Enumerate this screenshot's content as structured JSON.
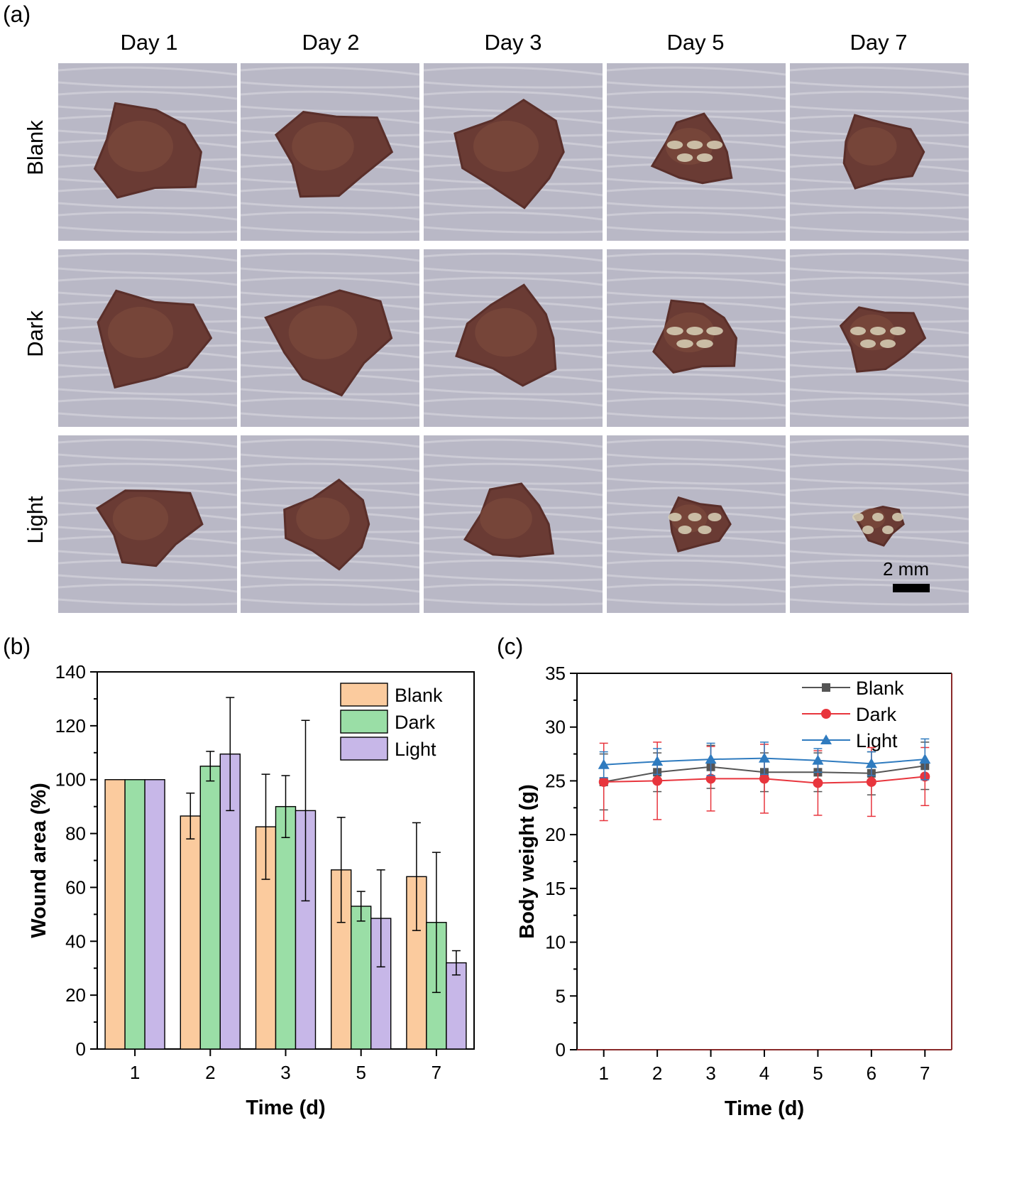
{
  "panel_a": {
    "label": "(a)",
    "days": [
      "Day 1",
      "Day 2",
      "Day 3",
      "Day 5",
      "Day 7"
    ],
    "groups": [
      "Blank",
      "Dark",
      "Light"
    ],
    "scale_bar": "2 mm"
  },
  "chart_data": [
    {
      "panel": "(b)",
      "type": "bar",
      "xlabel": "Time (d)",
      "ylabel": "Wound area (%)",
      "ylim": [
        0,
        140
      ],
      "yticks": [
        0,
        20,
        40,
        60,
        80,
        100,
        120,
        140
      ],
      "categories": [
        "1",
        "2",
        "3",
        "5",
        "7"
      ],
      "legend_position": "top-right",
      "series": [
        {
          "name": "Blank",
          "color": "#FBCB9E",
          "values": [
            100,
            86.5,
            82.5,
            66.5,
            64
          ],
          "errors": [
            0,
            8.5,
            19.5,
            19.5,
            20
          ]
        },
        {
          "name": "Dark",
          "color": "#9ADEA6",
          "values": [
            100,
            105,
            90,
            53,
            47
          ],
          "errors": [
            0,
            5.5,
            11.5,
            5.5,
            26
          ]
        },
        {
          "name": "Light",
          "color": "#C7B7E8",
          "values": [
            100,
            109.5,
            88.5,
            48.5,
            32
          ],
          "errors": [
            0,
            21,
            33.5,
            18,
            4.5
          ]
        }
      ]
    },
    {
      "panel": "(c)",
      "type": "line",
      "xlabel": "Time (d)",
      "ylabel": "Body weight (g)",
      "ylim": [
        0,
        35
      ],
      "yticks": [
        0,
        5,
        10,
        15,
        20,
        25,
        30,
        35
      ],
      "xlim": [
        0.5,
        7.5
      ],
      "x": [
        1,
        2,
        3,
        4,
        5,
        6,
        7
      ],
      "legend_position": "top-right",
      "series": [
        {
          "name": "Blank",
          "color": "#555555",
          "marker": "square",
          "values": [
            24.9,
            25.8,
            26.3,
            25.8,
            25.8,
            25.7,
            26.4
          ],
          "errors": [
            2.6,
            1.8,
            2.0,
            1.8,
            1.8,
            2.0,
            2.2
          ]
        },
        {
          "name": "Dark",
          "color": "#E8353D",
          "marker": "circle",
          "values": [
            24.9,
            25.0,
            25.2,
            25.2,
            24.8,
            24.9,
            25.4
          ],
          "errors": [
            3.6,
            3.6,
            3.0,
            3.2,
            3.0,
            3.2,
            2.7
          ]
        },
        {
          "name": "Light",
          "color": "#2F7BBF",
          "marker": "triangle",
          "values": [
            26.5,
            26.8,
            27.0,
            27.1,
            26.9,
            26.6,
            27.0
          ],
          "errors": [
            1.2,
            1.2,
            1.5,
            1.5,
            1.1,
            1.1,
            1.9
          ]
        }
      ]
    }
  ]
}
